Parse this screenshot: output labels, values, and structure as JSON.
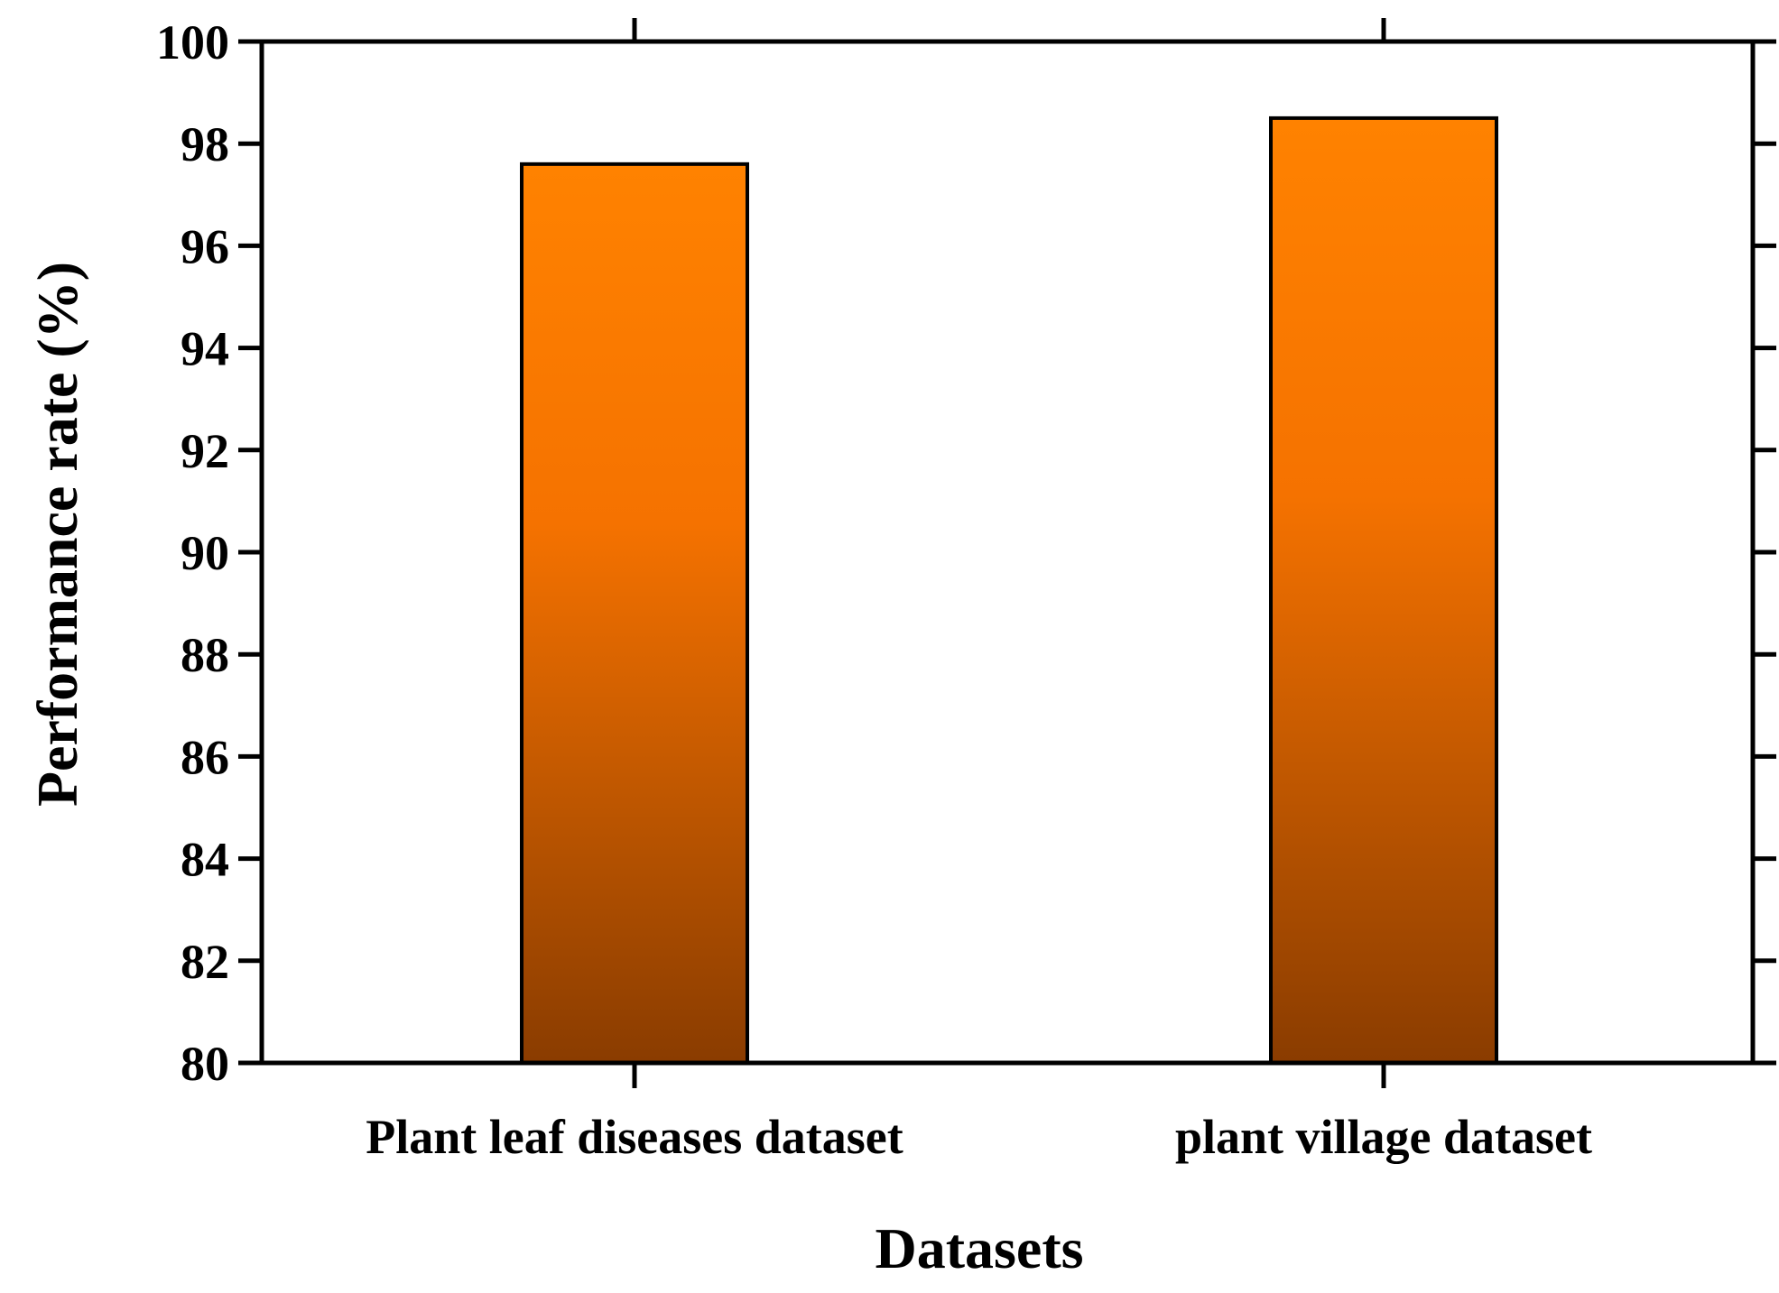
{
  "chart_data": {
    "type": "bar",
    "title": "",
    "xlabel": "Datasets",
    "ylabel": "Performance rate (%)",
    "categories": [
      "Plant leaf diseases dataset",
      "plant village dataset"
    ],
    "values": [
      97.6,
      98.5
    ],
    "ylim": [
      80,
      100
    ],
    "yticks": [
      80,
      82,
      84,
      86,
      88,
      90,
      92,
      94,
      96,
      98,
      100
    ],
    "grid": false,
    "colors": {
      "bar_top": "#ff8200",
      "bar_mid": "#f57200",
      "bar_bottom": "#8a3c00",
      "bar_edge": "#000000",
      "axis": "#000000"
    }
  }
}
